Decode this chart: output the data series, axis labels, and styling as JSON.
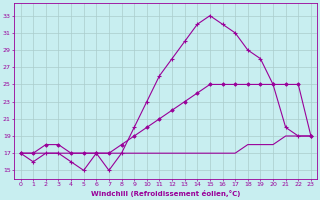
{
  "xlabel": "Windchill (Refroidissement éolien,°C)",
  "xlim": [
    -0.5,
    23.5
  ],
  "ylim": [
    14.0,
    34.5
  ],
  "xticks": [
    0,
    1,
    2,
    3,
    4,
    5,
    6,
    7,
    8,
    9,
    10,
    11,
    12,
    13,
    14,
    15,
    16,
    17,
    18,
    19,
    20,
    21,
    22,
    23
  ],
  "yticks": [
    15,
    17,
    19,
    21,
    23,
    25,
    27,
    29,
    31,
    33
  ],
  "bg_color": "#c8eef0",
  "line_color": "#990099",
  "grid_color": "#aacccc",
  "line1_x": [
    0,
    1,
    2,
    3,
    4,
    5,
    6,
    7,
    8,
    9,
    10,
    11,
    12,
    13,
    14,
    15,
    16,
    17,
    18,
    19,
    20,
    21,
    22,
    23
  ],
  "line1_y": [
    17,
    16,
    17,
    17,
    16,
    15,
    17,
    15,
    17,
    20,
    23,
    26,
    28,
    30,
    32,
    33,
    32,
    31,
    29,
    28,
    25,
    20,
    19,
    19
  ],
  "line2_x": [
    0,
    1,
    2,
    3,
    4,
    5,
    6,
    7,
    8,
    9,
    10,
    11,
    12,
    13,
    14,
    15,
    16,
    17,
    18,
    19,
    20,
    21,
    22,
    23
  ],
  "line2_y": [
    17,
    17,
    18,
    18,
    17,
    17,
    17,
    17,
    18,
    19,
    20,
    21,
    22,
    23,
    24,
    25,
    25,
    25,
    25,
    25,
    25,
    25,
    25,
    19
  ],
  "line3_x": [
    0,
    1,
    2,
    3,
    4,
    5,
    6,
    7,
    8,
    9,
    10,
    11,
    12,
    13,
    14,
    15,
    16,
    17,
    18,
    19,
    20,
    21,
    22,
    23
  ],
  "line3_y": [
    17,
    17,
    17,
    17,
    17,
    17,
    17,
    17,
    17,
    17,
    17,
    17,
    17,
    17,
    17,
    17,
    17,
    17,
    18,
    18,
    18,
    19,
    19,
    19
  ]
}
